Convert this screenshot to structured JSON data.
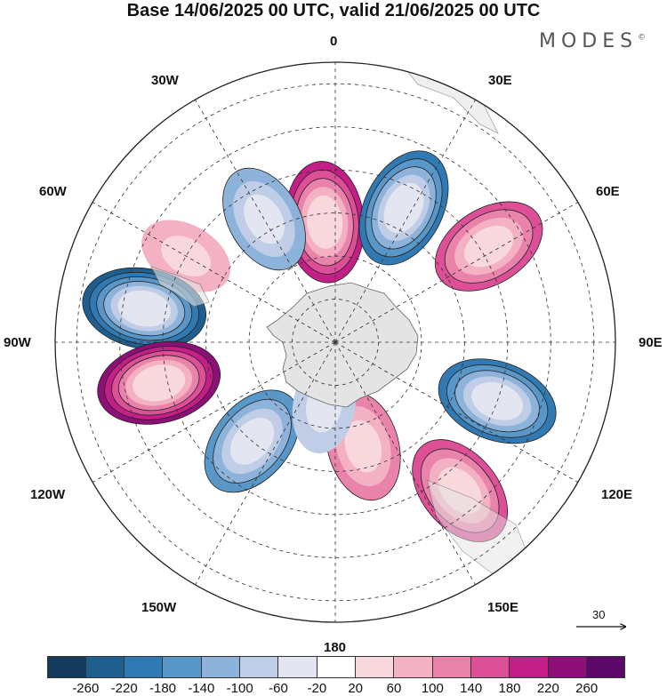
{
  "title": "Base 14/06/2025 00 UTC, valid 21/06/2025 00 UTC",
  "logo": "MODES",
  "logo_mark": "©",
  "longitude_labels": {
    "0": "0",
    "30E": "30E",
    "60E": "60E",
    "90E": "90E",
    "120E": "120E",
    "150E": "150E",
    "180": "180",
    "150W": "150W",
    "120W": "120W",
    "90W": "90W",
    "60W": "60W",
    "30W": "30W"
  },
  "vector_scale_label": "30",
  "colorbar": {
    "ticks": [
      "-260",
      "-220",
      "-180",
      "-140",
      "-100",
      "-60",
      "-20",
      "20",
      "60",
      "100",
      "140",
      "180",
      "220",
      "260"
    ],
    "colors": [
      "#163a5c",
      "#1f5f8f",
      "#3179b2",
      "#5897c8",
      "#8db3da",
      "#bfcde6",
      "#e3e6f1",
      "#ffffff",
      "#f8d8dc",
      "#f3b1c3",
      "#ea83aa",
      "#dd4f96",
      "#c41f86",
      "#8e0f78",
      "#5b0868"
    ]
  },
  "anomaly_centers": [
    {
      "lon": -5,
      "lat": -62,
      "value": 200
    },
    {
      "lon": 27,
      "lat": -55,
      "value": -200
    },
    {
      "lon": 58,
      "lat": -48,
      "value": 160
    },
    {
      "lon": 110,
      "lat": -50,
      "value": -200
    },
    {
      "lon": 140,
      "lat": -45,
      "value": 160
    },
    {
      "lon": -30,
      "lat": -57,
      "value": -120
    },
    {
      "lon": -60,
      "lat": -50,
      "value": 80
    },
    {
      "lon": -80,
      "lat": -45,
      "value": -240
    },
    {
      "lon": -103,
      "lat": -48,
      "value": 240
    },
    {
      "lon": -140,
      "lat": -60,
      "value": -160
    },
    {
      "lon": 165,
      "lat": -65,
      "value": 120
    },
    {
      "lon": -170,
      "lat": -75,
      "value": -80
    }
  ]
}
